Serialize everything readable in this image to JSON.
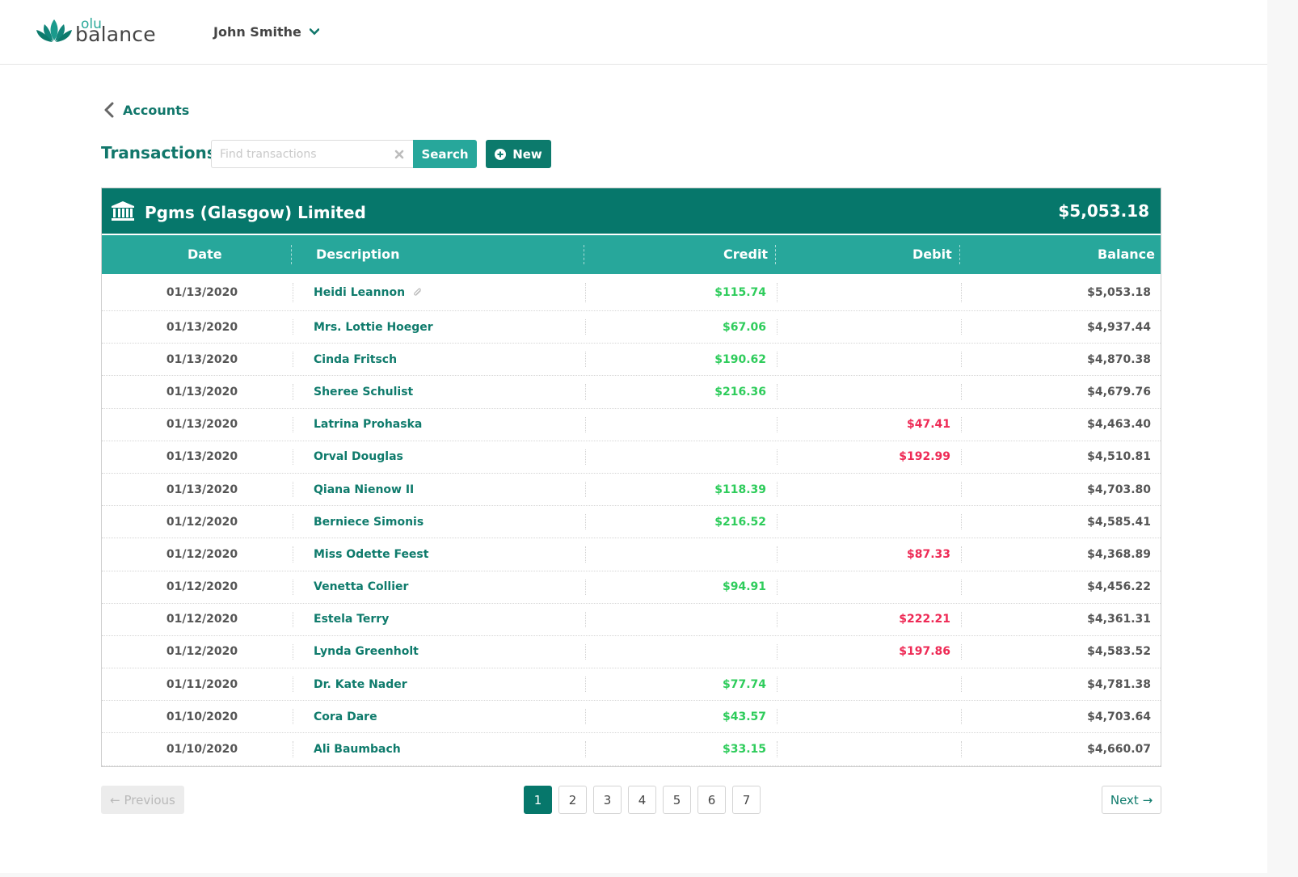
{
  "header": {
    "logo_small": "olu",
    "logo_main": "balance",
    "user_name": "John Smithe"
  },
  "breadcrumb": {
    "label": "Accounts"
  },
  "toolbar": {
    "title": "Transactions",
    "search_placeholder": "Find transactions",
    "search_value": "",
    "search_label": "Search",
    "new_label": "New"
  },
  "account": {
    "name": "Pgms (Glasgow) Limited",
    "balance": "$5,053.18"
  },
  "columns": {
    "date": "Date",
    "description": "Description",
    "credit": "Credit",
    "debit": "Debit",
    "balance": "Balance"
  },
  "rows": [
    {
      "date": "01/13/2020",
      "description": "Heidi Leannon",
      "attachment": true,
      "credit": "$115.74",
      "debit": "",
      "balance": "$5,053.18"
    },
    {
      "date": "01/13/2020",
      "description": "Mrs. Lottie Hoeger",
      "credit": "$67.06",
      "debit": "",
      "balance": "$4,937.44"
    },
    {
      "date": "01/13/2020",
      "description": "Cinda Fritsch",
      "credit": "$190.62",
      "debit": "",
      "balance": "$4,870.38"
    },
    {
      "date": "01/13/2020",
      "description": "Sheree Schulist",
      "credit": "$216.36",
      "debit": "",
      "balance": "$4,679.76"
    },
    {
      "date": "01/13/2020",
      "description": "Latrina Prohaska",
      "credit": "",
      "debit": "$47.41",
      "balance": "$4,463.40"
    },
    {
      "date": "01/13/2020",
      "description": "Orval Douglas",
      "credit": "",
      "debit": "$192.99",
      "balance": "$4,510.81"
    },
    {
      "date": "01/13/2020",
      "description": "Qiana Nienow II",
      "credit": "$118.39",
      "debit": "",
      "balance": "$4,703.80"
    },
    {
      "date": "01/12/2020",
      "description": "Berniece Simonis",
      "credit": "$216.52",
      "debit": "",
      "balance": "$4,585.41"
    },
    {
      "date": "01/12/2020",
      "description": "Miss Odette Feest",
      "credit": "",
      "debit": "$87.33",
      "balance": "$4,368.89"
    },
    {
      "date": "01/12/2020",
      "description": "Venetta Collier",
      "credit": "$94.91",
      "debit": "",
      "balance": "$4,456.22"
    },
    {
      "date": "01/12/2020",
      "description": "Estela Terry",
      "credit": "",
      "debit": "$222.21",
      "balance": "$4,361.31"
    },
    {
      "date": "01/12/2020",
      "description": "Lynda Greenholt",
      "credit": "",
      "debit": "$197.86",
      "balance": "$4,583.52"
    },
    {
      "date": "01/11/2020",
      "description": "Dr. Kate Nader",
      "credit": "$77.74",
      "debit": "",
      "balance": "$4,781.38"
    },
    {
      "date": "01/10/2020",
      "description": "Cora Dare",
      "credit": "$43.57",
      "debit": "",
      "balance": "$4,703.64"
    },
    {
      "date": "01/10/2020",
      "description": "Ali Baumbach",
      "credit": "$33.15",
      "debit": "",
      "balance": "$4,660.07"
    }
  ],
  "pagination": {
    "previous_label": "Previous",
    "next_label": "Next",
    "pages": [
      "1",
      "2",
      "3",
      "4",
      "5",
      "6",
      "7"
    ],
    "current": "1"
  },
  "colors": {
    "primary": "#06776b",
    "accent": "#27a79b",
    "credit": "#2ecc5b",
    "debit": "#ee2a55"
  },
  "icons": {
    "logo": "lotus-logo-icon",
    "user_menu": "chevron-down-icon",
    "back": "chevron-left-icon",
    "clear": "clear-x-icon",
    "new": "plus-circle-icon",
    "bank": "bank-icon",
    "attachment": "paperclip-icon",
    "prev": "arrow-left-icon",
    "next": "arrow-right-icon"
  }
}
